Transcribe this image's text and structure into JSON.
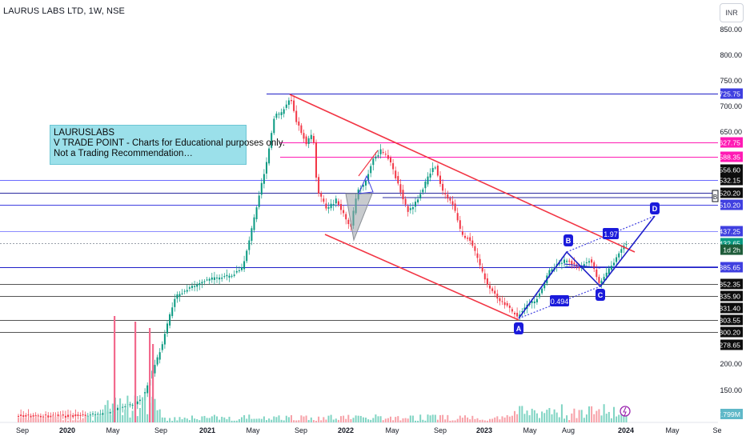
{
  "header": {
    "title": "LAURUS LABS LTD, 1W, NSE"
  },
  "note": {
    "lines": [
      "LAURUSLABS",
      "V TRADE POINT - Charts for Educational purposes only.",
      "Not a Trading Recommendation…"
    ]
  },
  "currency": "INR",
  "chart_data": {
    "type": "candlestick",
    "x_ticks": [
      "Sep",
      "2020",
      "May",
      "Sep",
      "2021",
      "May",
      "Sep",
      "2022",
      "May",
      "Sep",
      "2023",
      "May",
      "Aug",
      "2024",
      "May",
      "Se"
    ],
    "y_ticks": [
      "850.00",
      "800.00",
      "750.00",
      "700.00",
      "650.00",
      "200.00",
      "150.00"
    ],
    "price_labels": [
      {
        "text": "725.75",
        "value": 725.75,
        "color": "#3f3fe0",
        "line": "#1f1fc8"
      },
      {
        "text": "627.75",
        "value": 627.75,
        "color": "#ff1ab4",
        "line": "#ff1ab4"
      },
      {
        "text": "588.35",
        "value": 588.35,
        "color": "#ff1ab4",
        "line": "#ff1ab4"
      },
      {
        "text": "556.60",
        "value": 556.6,
        "color": "#0d0d0d",
        "line": "none"
      },
      {
        "text": "532.15",
        "value": 532.15,
        "color": "#0d0d0d",
        "line": "#6a6aff"
      },
      {
        "text": "520.20",
        "value": 520.2,
        "color": "#0d0d0d",
        "line": "#2a2aa0"
      },
      {
        "text": "510.20",
        "value": 510.2,
        "color": "#3f3fe0",
        "line": "#3f3fe0"
      },
      {
        "text": "437.25",
        "value": 437.25,
        "color": "#3f3fe0",
        "line": "#8c8cff"
      },
      {
        "text": "432.65",
        "value": 432.65,
        "color": "#089981",
        "line": "#9aa0aa"
      },
      {
        "text": "1d 2h",
        "value": 420,
        "color": "#1e5c3a",
        "line": "none"
      },
      {
        "text": "385.65",
        "value": 385.65,
        "color": "#3f3fe0",
        "line": "#1f1fc8"
      },
      {
        "text": "352.35",
        "value": 352.35,
        "color": "#0d0d0d",
        "line": "#555555"
      },
      {
        "text": "335.90",
        "value": 335.9,
        "color": "#0d0d0d",
        "line": "#555555"
      },
      {
        "text": "331.40",
        "value": 331.4,
        "color": "#0d0d0d",
        "line": "none"
      },
      {
        "text": "303.55",
        "value": 303.55,
        "color": "#0d0d0d",
        "line": "#555555"
      },
      {
        "text": "300.20",
        "value": 300.2,
        "color": "#0d0d0d",
        "line": "#555555"
      },
      {
        "text": "278.65",
        "value": 278.65,
        "color": "#0d0d0d",
        "line": "none"
      }
    ],
    "volume_label": "7.799M",
    "pattern_labels": [
      "A",
      "B",
      "C",
      "D"
    ],
    "ratio_labels": [
      "0.494",
      "1.97"
    ],
    "close_price": 432.65
  }
}
